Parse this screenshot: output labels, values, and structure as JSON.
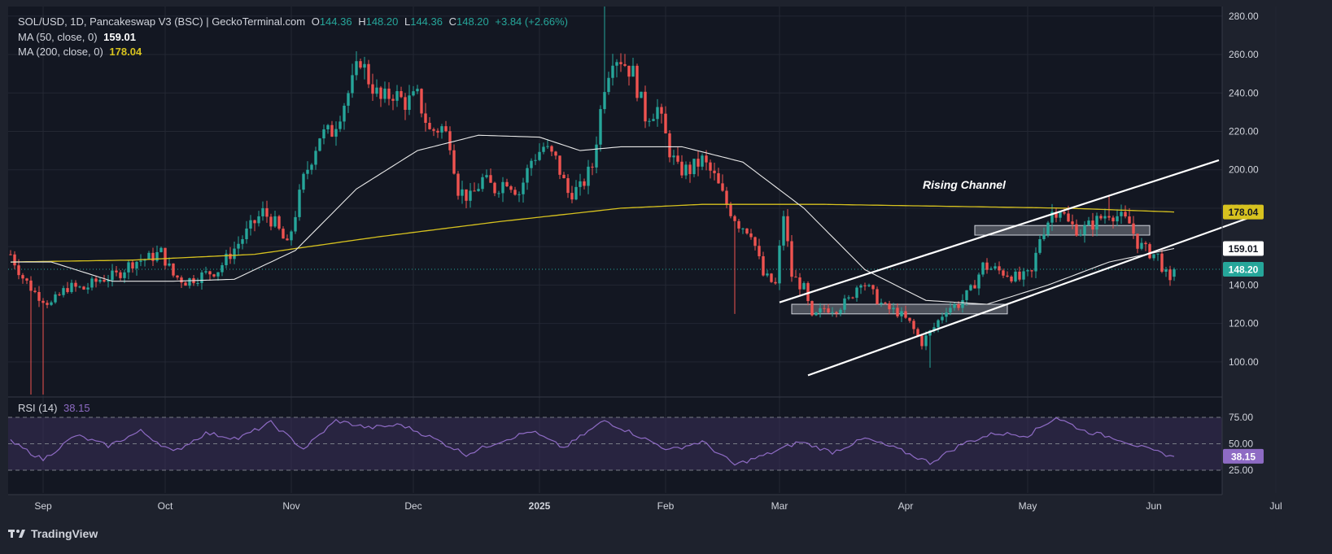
{
  "header": {
    "symbol": "SOL/USD, 1D, Pancakeswap V3 (BSC) | GeckoTerminal.com",
    "o_label": "O",
    "o_value": "144.36",
    "h_label": "H",
    "h_value": "148.20",
    "l_label": "L",
    "l_value": "144.36",
    "c_label": "C",
    "c_value": "148.20",
    "change": "+3.84 (+2.66%)"
  },
  "indicators": {
    "ma50_label": "MA (50, close, 0)",
    "ma50_value": "159.01",
    "ma200_label": "MA (200, close, 0)",
    "ma200_value": "178.04",
    "rsi_label": "RSI (14)",
    "rsi_value": "38.15"
  },
  "annotation": "Rising Channel",
  "branding": "TradingView",
  "colors": {
    "background": "#1e222d",
    "up": "#26a69a",
    "down": "#ef5350",
    "ma50": "#e8e8e8",
    "ma200": "#d7c21f",
    "rsi": "#8e6bc4",
    "rsi_band": "#3a2f5a",
    "text": "#d1d4dc"
  },
  "chart_data": {
    "type": "candlestick",
    "title": "SOL/USD, 1D",
    "price_axis": {
      "ticks": [
        100,
        120,
        140,
        160,
        180,
        200,
        220,
        240,
        260,
        280
      ],
      "labels": [
        "100.00",
        "120.00",
        "140.00",
        "160.00",
        "180.00",
        "200.00",
        "220.00",
        "240.00",
        "260.00",
        "280.00"
      ],
      "range": [
        83,
        285
      ]
    },
    "time_axis": {
      "labels": [
        "Sep",
        "Oct",
        "Nov",
        "Dec",
        "2025",
        "Feb",
        "Mar",
        "Apr",
        "May",
        "Jun",
        "Jul"
      ]
    },
    "price_badges": [
      {
        "label": "178.04",
        "value": 178.04,
        "series": "ma200"
      },
      {
        "label": "159.01",
        "value": 159.01,
        "series": "ma50"
      },
      {
        "label": "148.20",
        "value": 148.2,
        "series": "price"
      }
    ],
    "close_anchors": [
      {
        "day": 0,
        "price": 156
      },
      {
        "day": 3,
        "price": 144
      },
      {
        "day": 6,
        "price": 136
      },
      {
        "day": 10,
        "price": 130
      },
      {
        "day": 14,
        "price": 139
      },
      {
        "day": 18,
        "price": 138
      },
      {
        "day": 22,
        "price": 143
      },
      {
        "day": 26,
        "price": 145
      },
      {
        "day": 30,
        "price": 152
      },
      {
        "day": 34,
        "price": 154
      },
      {
        "day": 37,
        "price": 157
      },
      {
        "day": 40,
        "price": 145
      },
      {
        "day": 43,
        "price": 142
      },
      {
        "day": 47,
        "price": 145
      },
      {
        "day": 51,
        "price": 148
      },
      {
        "day": 55,
        "price": 159
      },
      {
        "day": 59,
        "price": 170
      },
      {
        "day": 62,
        "price": 178
      },
      {
        "day": 65,
        "price": 172
      },
      {
        "day": 68,
        "price": 160
      },
      {
        "day": 72,
        "price": 195
      },
      {
        "day": 76,
        "price": 218
      },
      {
        "day": 79,
        "price": 220
      },
      {
        "day": 82,
        "price": 235
      },
      {
        "day": 84,
        "price": 245
      },
      {
        "day": 86,
        "price": 258
      },
      {
        "day": 88,
        "price": 247
      },
      {
        "day": 91,
        "price": 236
      },
      {
        "day": 94,
        "price": 240
      },
      {
        "day": 97,
        "price": 235
      },
      {
        "day": 100,
        "price": 238
      },
      {
        "day": 103,
        "price": 220
      },
      {
        "day": 106,
        "price": 222
      },
      {
        "day": 108,
        "price": 215
      },
      {
        "day": 110,
        "price": 190
      },
      {
        "day": 113,
        "price": 185
      },
      {
        "day": 116,
        "price": 195
      },
      {
        "day": 119,
        "price": 190
      },
      {
        "day": 122,
        "price": 195
      },
      {
        "day": 125,
        "price": 188
      },
      {
        "day": 128,
        "price": 205
      },
      {
        "day": 131,
        "price": 212
      },
      {
        "day": 134,
        "price": 205
      },
      {
        "day": 137,
        "price": 188
      },
      {
        "day": 140,
        "price": 190
      },
      {
        "day": 143,
        "price": 202
      },
      {
        "day": 146,
        "price": 245
      },
      {
        "day": 148,
        "price": 260
      },
      {
        "day": 150,
        "price": 258
      },
      {
        "day": 153,
        "price": 250
      },
      {
        "day": 156,
        "price": 228
      },
      {
        "day": 159,
        "price": 232
      },
      {
        "day": 162,
        "price": 210
      },
      {
        "day": 164,
        "price": 200
      },
      {
        "day": 167,
        "price": 200
      },
      {
        "day": 170,
        "price": 205
      },
      {
        "day": 173,
        "price": 196
      },
      {
        "day": 176,
        "price": 182
      },
      {
        "day": 179,
        "price": 172
      },
      {
        "day": 182,
        "price": 168
      },
      {
        "day": 185,
        "price": 145
      },
      {
        "day": 188,
        "price": 140
      },
      {
        "day": 190,
        "price": 177
      },
      {
        "day": 192,
        "price": 145
      },
      {
        "day": 195,
        "price": 138
      },
      {
        "day": 197,
        "price": 122
      },
      {
        "day": 200,
        "price": 128
      },
      {
        "day": 203,
        "price": 128
      },
      {
        "day": 206,
        "price": 132
      },
      {
        "day": 209,
        "price": 143
      },
      {
        "day": 212,
        "price": 135
      },
      {
        "day": 215,
        "price": 128
      },
      {
        "day": 218,
        "price": 126
      },
      {
        "day": 221,
        "price": 120
      },
      {
        "day": 224,
        "price": 110
      },
      {
        "day": 227,
        "price": 118
      },
      {
        "day": 230,
        "price": 128
      },
      {
        "day": 233,
        "price": 130
      },
      {
        "day": 236,
        "price": 137
      },
      {
        "day": 239,
        "price": 150
      },
      {
        "day": 242,
        "price": 148
      },
      {
        "day": 245,
        "price": 146
      },
      {
        "day": 248,
        "price": 143
      },
      {
        "day": 251,
        "price": 146
      },
      {
        "day": 253,
        "price": 165
      },
      {
        "day": 256,
        "price": 178
      },
      {
        "day": 258,
        "price": 180
      },
      {
        "day": 260,
        "price": 172
      },
      {
        "day": 263,
        "price": 168
      },
      {
        "day": 266,
        "price": 172
      },
      {
        "day": 268,
        "price": 175
      },
      {
        "day": 270,
        "price": 178
      },
      {
        "day": 272,
        "price": 176
      },
      {
        "day": 275,
        "price": 172
      },
      {
        "day": 277,
        "price": 162
      },
      {
        "day": 279,
        "price": 158
      },
      {
        "day": 282,
        "price": 155
      },
      {
        "day": 285,
        "price": 140
      },
      {
        "day": 286,
        "price": 148.2
      }
    ],
    "notable_wicks": [
      {
        "day": 5,
        "low": 83
      },
      {
        "day": 8,
        "low": 83
      },
      {
        "day": 146,
        "high": 285
      },
      {
        "day": 178,
        "low": 125
      },
      {
        "day": 226,
        "low": 97
      },
      {
        "day": 270,
        "high": 187
      }
    ],
    "ma50_points": [
      {
        "day": 0,
        "value": 152
      },
      {
        "day": 10,
        "value": 152
      },
      {
        "day": 25,
        "value": 142
      },
      {
        "day": 40,
        "value": 142
      },
      {
        "day": 55,
        "value": 143
      },
      {
        "day": 70,
        "value": 158
      },
      {
        "day": 85,
        "value": 190
      },
      {
        "day": 100,
        "value": 210
      },
      {
        "day": 115,
        "value": 218
      },
      {
        "day": 130,
        "value": 217
      },
      {
        "day": 140,
        "value": 210
      },
      {
        "day": 150,
        "value": 212
      },
      {
        "day": 165,
        "value": 212
      },
      {
        "day": 180,
        "value": 204
      },
      {
        "day": 195,
        "value": 180
      },
      {
        "day": 210,
        "value": 148
      },
      {
        "day": 225,
        "value": 132
      },
      {
        "day": 240,
        "value": 130
      },
      {
        "day": 255,
        "value": 140
      },
      {
        "day": 270,
        "value": 152
      },
      {
        "day": 286,
        "value": 159.01
      }
    ],
    "ma200_points": [
      {
        "day": 0,
        "value": 152
      },
      {
        "day": 30,
        "value": 153
      },
      {
        "day": 60,
        "value": 156
      },
      {
        "day": 90,
        "value": 165
      },
      {
        "day": 120,
        "value": 173
      },
      {
        "day": 150,
        "value": 180
      },
      {
        "day": 170,
        "value": 182
      },
      {
        "day": 200,
        "value": 182
      },
      {
        "day": 230,
        "value": 181
      },
      {
        "day": 260,
        "value": 180
      },
      {
        "day": 286,
        "value": 178.04
      }
    ],
    "rising_channel": {
      "upper": {
        "start": {
          "day": 189,
          "price": 131
        },
        "end": {
          "day": 297,
          "price": 205
        }
      },
      "lower": {
        "start": {
          "day": 196,
          "price": 93
        },
        "end": {
          "day": 307,
          "price": 177
        }
      }
    },
    "zones": [
      {
        "label": "support box",
        "x_start": 192,
        "x_end": 245,
        "y_low": 125,
        "y_high": 130
      },
      {
        "label": "resistance box",
        "x_start": 237,
        "x_end": 280,
        "y_low": 166,
        "y_high": 171
      }
    ],
    "rsi": {
      "levels": [
        25,
        50,
        75
      ],
      "labels": [
        "25.00",
        "50.00",
        "75.00"
      ],
      "current": 38.15,
      "points": [
        {
          "day": 0,
          "value": 52
        },
        {
          "day": 8,
          "value": 35
        },
        {
          "day": 16,
          "value": 58
        },
        {
          "day": 24,
          "value": 48
        },
        {
          "day": 32,
          "value": 62
        },
        {
          "day": 40,
          "value": 42
        },
        {
          "day": 48,
          "value": 60
        },
        {
          "day": 56,
          "value": 55
        },
        {
          "day": 64,
          "value": 70
        },
        {
          "day": 72,
          "value": 45
        },
        {
          "day": 80,
          "value": 72
        },
        {
          "day": 88,
          "value": 65
        },
        {
          "day": 96,
          "value": 68
        },
        {
          "day": 104,
          "value": 55
        },
        {
          "day": 112,
          "value": 40
        },
        {
          "day": 120,
          "value": 52
        },
        {
          "day": 128,
          "value": 62
        },
        {
          "day": 136,
          "value": 46
        },
        {
          "day": 146,
          "value": 72
        },
        {
          "day": 154,
          "value": 58
        },
        {
          "day": 162,
          "value": 44
        },
        {
          "day": 170,
          "value": 52
        },
        {
          "day": 178,
          "value": 30
        },
        {
          "day": 186,
          "value": 40
        },
        {
          "day": 194,
          "value": 52
        },
        {
          "day": 202,
          "value": 42
        },
        {
          "day": 210,
          "value": 55
        },
        {
          "day": 218,
          "value": 45
        },
        {
          "day": 226,
          "value": 32
        },
        {
          "day": 234,
          "value": 50
        },
        {
          "day": 242,
          "value": 60
        },
        {
          "day": 250,
          "value": 58
        },
        {
          "day": 257,
          "value": 75
        },
        {
          "day": 264,
          "value": 62
        },
        {
          "day": 272,
          "value": 55
        },
        {
          "day": 280,
          "value": 44
        },
        {
          "day": 286,
          "value": 38
        }
      ]
    }
  }
}
